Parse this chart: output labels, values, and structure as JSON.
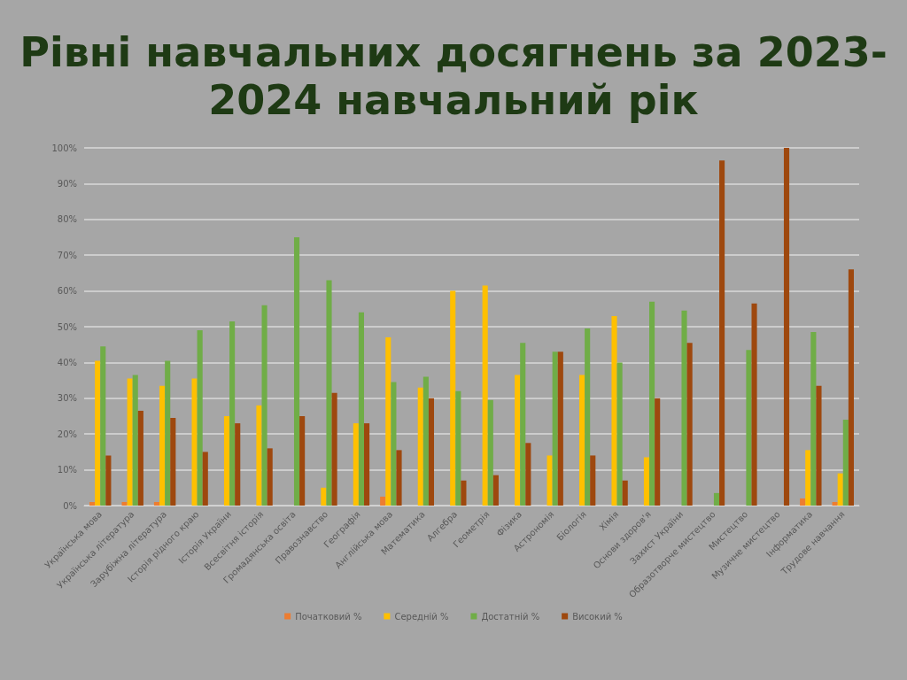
{
  "chart_data": {
    "type": "bar",
    "title": "Рівні навчальних досягнень за 2023-2024 навчальний рік",
    "categories": [
      "Українська мова",
      "Українська література",
      "Зарубіжна література",
      "Історія рідного краю",
      "Історія України",
      "Всесвітня історія",
      "Громадянська освіта",
      "Правознавство",
      "Географія",
      "Англійська мова",
      "Математика",
      "Алгебра",
      "Геометрія",
      "Фізика",
      "Астрономія",
      "Біологія",
      "Хімія",
      "Основи здоров'я",
      "Захист України",
      "Образотворче мистецтво",
      "Мистецтво",
      "Музичне мистецтво",
      "Інформатика",
      "Трудове навчання"
    ],
    "series": [
      {
        "name": "Початковий %",
        "color": "#ed7d31",
        "values": [
          1,
          1,
          1,
          0,
          0,
          0,
          0,
          0,
          0,
          2.5,
          0,
          0,
          0,
          0,
          0,
          0,
          0,
          0,
          0,
          0,
          0,
          0,
          2,
          1
        ]
      },
      {
        "name": "Середній %",
        "color": "#ffc000",
        "values": [
          40.5,
          35.5,
          33.5,
          35.5,
          25,
          28,
          0,
          5,
          23,
          47,
          33,
          60,
          61.5,
          36.5,
          14,
          36.5,
          53,
          13.5,
          0,
          0,
          0,
          0,
          15.5,
          9
        ]
      },
      {
        "name": "Достатній %",
        "color": "#70ad47",
        "values": [
          44.5,
          36.5,
          40.5,
          49,
          51.5,
          56,
          75,
          63,
          54,
          34.5,
          36,
          32,
          29.5,
          45.5,
          43,
          49.5,
          40,
          57,
          54.5,
          3.5,
          43.5,
          0,
          48.5,
          24
        ]
      },
      {
        "name": "Високий %",
        "color": "#9e480e",
        "values": [
          14,
          26.5,
          24.5,
          15,
          23,
          16,
          25,
          31.5,
          23,
          15.5,
          30,
          7,
          8.5,
          17.5,
          43,
          14,
          7,
          30,
          45.5,
          96.5,
          56.5,
          100,
          33.5,
          66
        ]
      }
    ],
    "ylim": [
      0,
      100
    ],
    "yticks": [
      {
        "value": 0,
        "label": "0%"
      },
      {
        "value": 10,
        "label": "10%"
      },
      {
        "value": 20,
        "label": "20%"
      },
      {
        "value": 30,
        "label": "30%"
      },
      {
        "value": 40,
        "label": "40%"
      },
      {
        "value": 50,
        "label": "50%"
      },
      {
        "value": 60,
        "label": "60%"
      },
      {
        "value": 70,
        "label": "70%"
      },
      {
        "value": 80,
        "label": "80%"
      },
      {
        "value": 90,
        "label": "90%"
      },
      {
        "value": 100,
        "label": "100%"
      }
    ],
    "grid": "y",
    "legend": "bottom"
  }
}
